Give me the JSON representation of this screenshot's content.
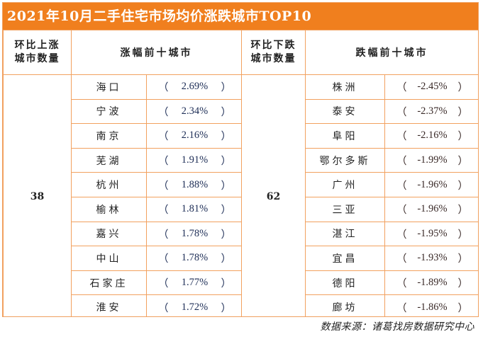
{
  "title": "2021年10月二手住宅市场均价涨跌城市TOP10",
  "headers": {
    "up_count": "环比上涨城市数量",
    "up_count_line1": "环比上涨",
    "up_count_line2": "城市数量",
    "up_top": "涨幅前十城市",
    "down_count_line1": "环比下跌",
    "down_count_line2": "城市数量",
    "down_top": "跌幅前十城市"
  },
  "up_count": "38",
  "down_count": "62",
  "rows": [
    {
      "up_city": "海口",
      "up_value": "2.69%",
      "down_city": "株洲",
      "down_value": "-2.45%"
    },
    {
      "up_city": "宁波",
      "up_value": "2.34%",
      "down_city": "泰安",
      "down_value": "-2.37%"
    },
    {
      "up_city": "南京",
      "up_value": "2.16%",
      "down_city": "阜阳",
      "down_value": "-2.16%"
    },
    {
      "up_city": "芜湖",
      "up_value": "1.91%",
      "down_city": "鄂尔多斯",
      "down_value": "-1.99%"
    },
    {
      "up_city": "杭州",
      "up_value": "1.88%",
      "down_city": "广州",
      "down_value": "-1.96%"
    },
    {
      "up_city": "榆林",
      "up_value": "1.81%",
      "down_city": "三亚",
      "down_value": "-1.96%"
    },
    {
      "up_city": "嘉兴",
      "up_value": "1.78%",
      "down_city": "湛江",
      "down_value": "-1.95%"
    },
    {
      "up_city": "中山",
      "up_value": "1.78%",
      "down_city": "宜昌",
      "down_value": "-1.93%"
    },
    {
      "up_city": "石家庄",
      "up_value": "1.77%",
      "down_city": "德阳",
      "down_value": "-1.89%"
    },
    {
      "up_city": "淮安",
      "up_value": "1.72%",
      "down_city": "廊坊",
      "down_value": "-1.86%"
    }
  ],
  "paren_open": "（",
  "paren_close": "）",
  "source": "数据来源：诸葛找房数据研究中心",
  "colors": {
    "accent": "#f07f1e",
    "border": "#f2a15f"
  }
}
